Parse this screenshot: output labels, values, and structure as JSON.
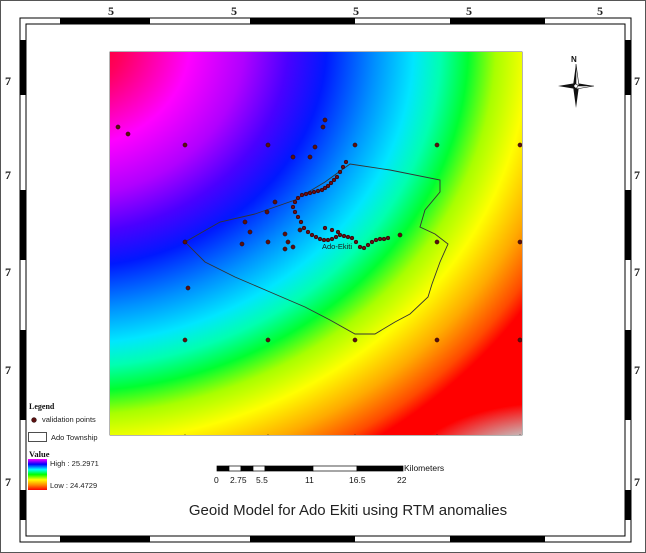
{
  "map": {
    "title": "Geoid Model for Ado Ekiti using RTM anomalies",
    "town_label": "Ado-Ekiti",
    "north_arrow_label": "N",
    "top_coord_labels": [
      "5",
      "5",
      "5",
      "5",
      "5"
    ],
    "side_coord_labels": [
      "7",
      "7",
      "7",
      "7",
      "7"
    ]
  },
  "legend": {
    "title": "Legend",
    "validation_points": "validation points",
    "township": "Ado Township",
    "value_title": "Value",
    "high": "High : 25.2971",
    "low": "Low : 24.4729",
    "gradient_colors": [
      "#ff0000",
      "#ff8800",
      "#ffff00",
      "#00ff00",
      "#00ffff",
      "#0000ff",
      "#ff00ff"
    ]
  },
  "scale_bar": {
    "ticks": [
      "0",
      "2.75",
      "5.5",
      "11",
      "16.5",
      "22"
    ],
    "unit": "Kilometers"
  }
}
